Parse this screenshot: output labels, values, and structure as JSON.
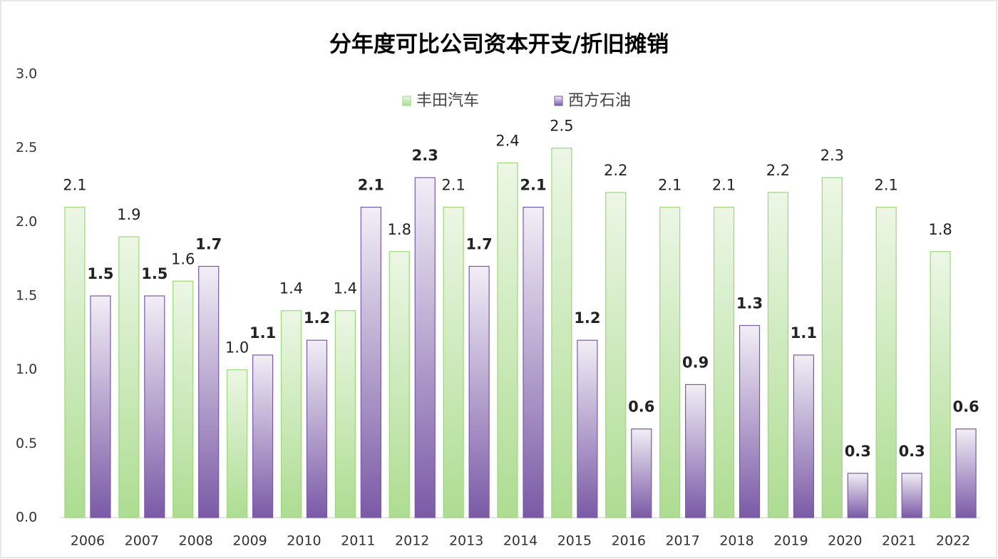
{
  "chart_data": {
    "type": "bar",
    "title": "分年度可比公司资本开支/折旧摊销",
    "categories": [
      "2006",
      "2007",
      "2008",
      "2009",
      "2010",
      "2011",
      "2012",
      "2013",
      "2014",
      "2015",
      "2016",
      "2017",
      "2018",
      "2019",
      "2020",
      "2021",
      "2022"
    ],
    "series": [
      {
        "name": "丰田汽车",
        "color": "#9fd67e",
        "values": [
          2.1,
          1.9,
          1.6,
          1.0,
          1.4,
          1.4,
          1.8,
          2.1,
          2.4,
          2.5,
          2.2,
          2.1,
          2.1,
          2.2,
          2.3,
          2.1,
          1.8
        ],
        "value_labels": [
          "2.1",
          "1.9",
          "1.6",
          "1.0",
          "1.4",
          "1.4",
          "1.8",
          "2.1",
          "2.4",
          "2.5",
          "2.2",
          "2.1",
          "2.1",
          "2.2",
          "2.3",
          "2.1",
          "1.8"
        ]
      },
      {
        "name": "西方石油",
        "color": "#7a5aa6",
        "values": [
          1.5,
          1.5,
          1.7,
          1.1,
          1.2,
          2.1,
          2.3,
          1.7,
          2.1,
          1.2,
          0.6,
          0.9,
          1.3,
          1.1,
          0.3,
          0.3,
          0.6
        ],
        "value_labels": [
          "1.5",
          "1.5",
          "1.7",
          "1.1",
          "1.2",
          "2.1",
          "2.3",
          "1.7",
          "2.1",
          "1.2",
          "0.6",
          "0.9",
          "1.3",
          "1.1",
          "0.3",
          "0.3",
          "0.6"
        ]
      }
    ],
    "ylim": [
      0,
      3
    ],
    "yticks": [
      {
        "value": 0,
        "label": "0.0"
      },
      0.5,
      {
        "value": 1,
        "label": "1.0"
      },
      1.5,
      {
        "value": 2,
        "label": "2.0"
      },
      2.5,
      {
        "value": 3,
        "label": "3.0"
      }
    ],
    "legend": "top"
  }
}
